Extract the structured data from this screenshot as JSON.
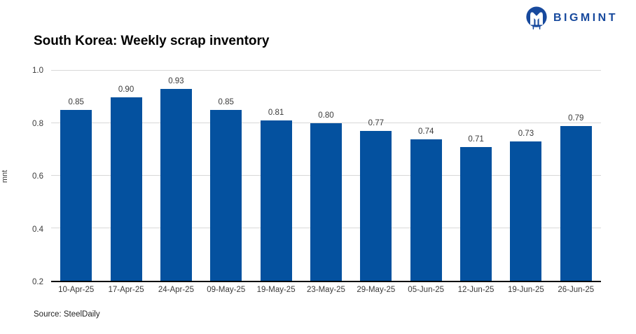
{
  "logo": {
    "text": "BIGMINT",
    "color": "#17499D",
    "icon": "bigmint-m-owl-mark"
  },
  "header": {
    "title": "South Korea: Weekly scrap inventory"
  },
  "footer": {
    "source": "Source: SteelDaily"
  },
  "chart_data": {
    "type": "bar",
    "title": "South Korea: Weekly scrap inventory",
    "categories": [
      "10-Apr-25",
      "17-Apr-25",
      "24-Apr-25",
      "09-May-25",
      "19-May-25",
      "23-May-25",
      "29-May-25",
      "05-Jun-25",
      "12-Jun-25",
      "19-Jun-25",
      "26-Jun-25"
    ],
    "values": [
      0.85,
      0.9,
      0.93,
      0.85,
      0.81,
      0.8,
      0.77,
      0.74,
      0.71,
      0.73,
      0.79
    ],
    "value_labels": [
      "0.85",
      "0.90",
      "0.93",
      "0.85",
      "0.81",
      "0.80",
      "0.77",
      "0.74",
      "0.71",
      "0.73",
      "0.79"
    ],
    "xlabel": "",
    "ylabel": "mnt",
    "ylim": [
      0.2,
      1.0
    ],
    "yticks": [
      0.2,
      0.4,
      0.6,
      0.8,
      1.0
    ],
    "ytick_labels": [
      "0.2",
      "0.4",
      "0.6",
      "0.8",
      "1.0"
    ],
    "grid": true,
    "legend": "none",
    "bar_color": "#04519F",
    "gridline_color": "#d8d8d8",
    "axis_color": "#000000"
  }
}
